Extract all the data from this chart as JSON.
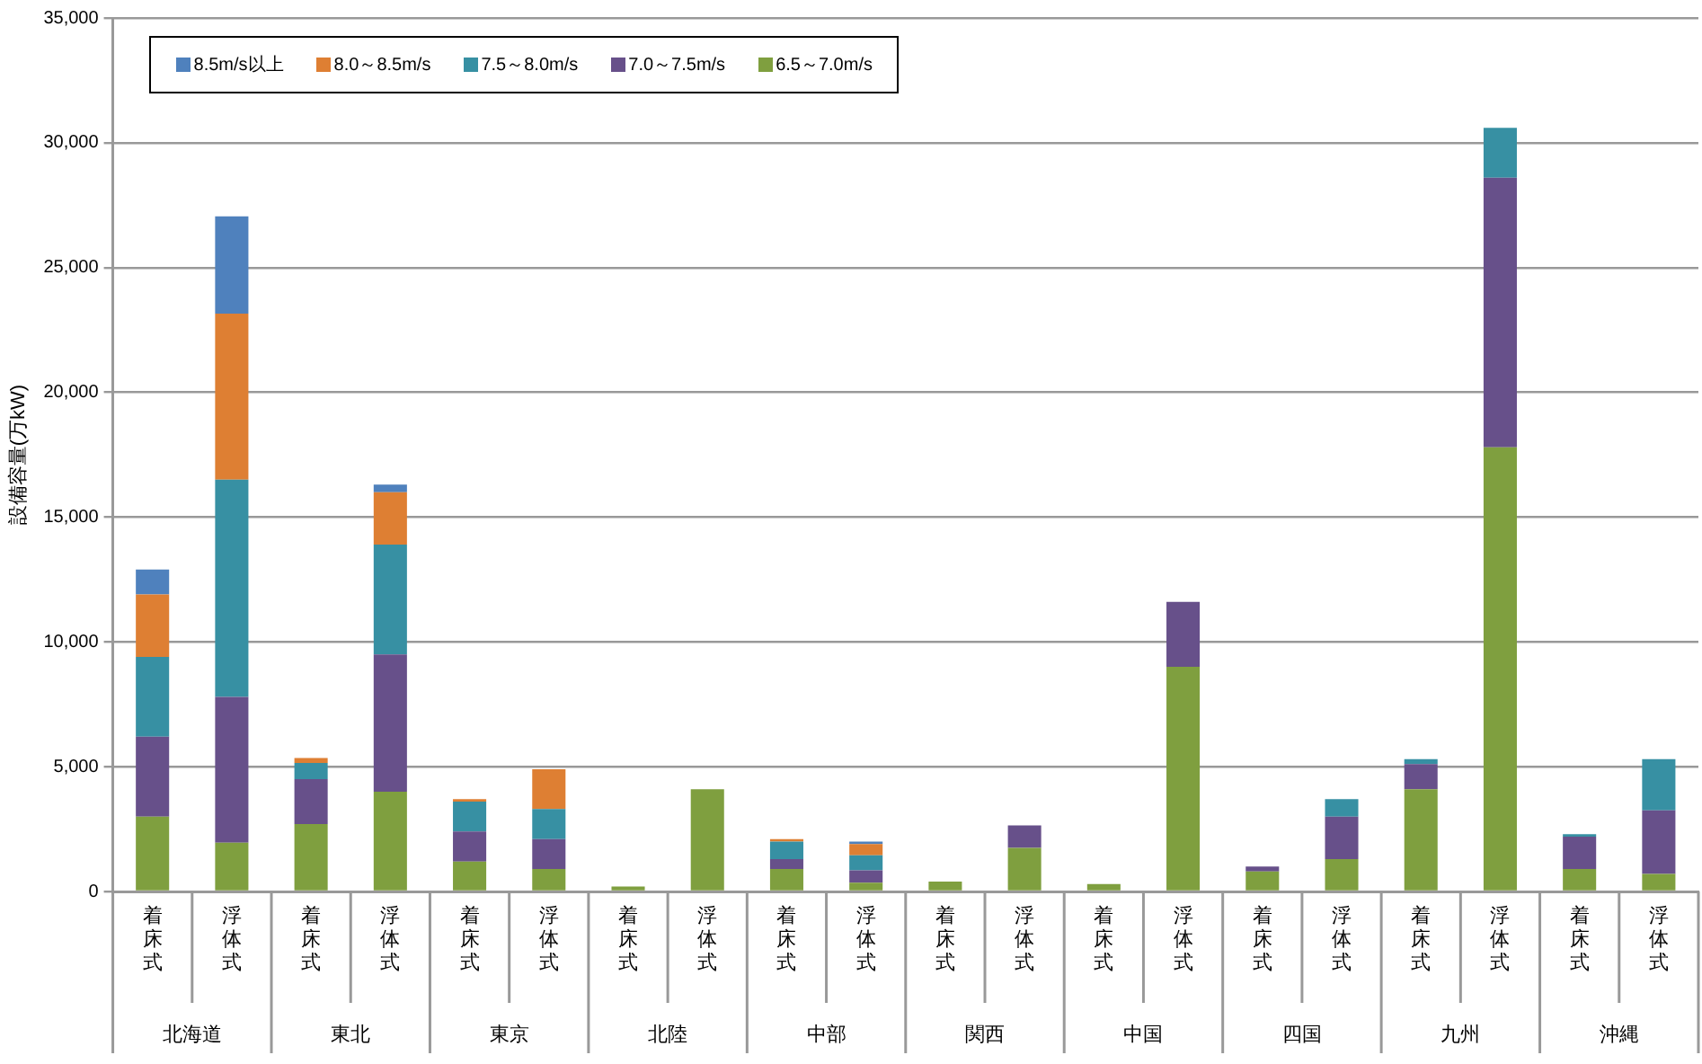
{
  "chart_data": {
    "type": "bar",
    "stacked": true,
    "ylabel": "設備容量(万kW)",
    "categories": [
      "着床式",
      "浮体式",
      "着床式",
      "浮体式",
      "着床式",
      "浮体式",
      "着床式",
      "浮体式",
      "着床式",
      "浮体式",
      "着床式",
      "浮体式",
      "着床式",
      "浮体式",
      "着床式",
      "浮体式",
      "着床式",
      "浮体式",
      "着床式",
      "浮体式"
    ],
    "annotations": [
      "北海道",
      "東北",
      "東京",
      "北陸",
      "中部",
      "関西",
      "中国",
      "四国",
      "九州",
      "沖縄"
    ],
    "series": [
      {
        "name": "6.5～7.0m/s",
        "color": "#7f9f3f",
        "values": [
          3000,
          1950,
          2700,
          4000,
          1200,
          900,
          200,
          4100,
          900,
          350,
          400,
          1750,
          300,
          9000,
          800,
          1300,
          4100,
          17800,
          900,
          700
        ]
      },
      {
        "name": "7.0～7.5m/s",
        "color": "#67508a",
        "values": [
          3200,
          5850,
          1800,
          5500,
          1200,
          1200,
          0,
          0,
          400,
          500,
          0,
          900,
          0,
          2600,
          200,
          1700,
          1000,
          10800,
          1300,
          2550
        ]
      },
      {
        "name": "7.5～8.0m/s",
        "color": "#3790a3",
        "values": [
          3200,
          8700,
          650,
          4400,
          1200,
          1200,
          0,
          0,
          700,
          600,
          0,
          0,
          0,
          0,
          0,
          700,
          200,
          2000,
          100,
          2050
        ]
      },
      {
        "name": "8.0～8.5m/s",
        "color": "#de7f33",
        "values": [
          2500,
          6650,
          200,
          2100,
          100,
          1600,
          0,
          0,
          100,
          450,
          0,
          0,
          0,
          0,
          0,
          0,
          0,
          0,
          0,
          0
        ]
      },
      {
        "name": "8.5m/s以上",
        "color": "#4f81bd",
        "values": [
          1000,
          3900,
          0,
          300,
          0,
          0,
          0,
          0,
          0,
          100,
          0,
          0,
          0,
          0,
          0,
          0,
          0,
          0,
          0,
          0
        ]
      }
    ],
    "ylim": [
      0,
      35000
    ],
    "yticks": [
      0,
      {
        "value": 5000,
        "label": "5,000"
      },
      {
        "value": 10000,
        "label": "10,000"
      },
      {
        "value": 15000,
        "label": "15,000"
      },
      {
        "value": 20000,
        "label": "20,000"
      },
      {
        "value": 25000,
        "label": "25,000"
      },
      {
        "value": 30000,
        "label": "30,000"
      },
      {
        "value": 35000,
        "label": "35,000"
      }
    ],
    "grid": "y",
    "legend": "top left"
  }
}
